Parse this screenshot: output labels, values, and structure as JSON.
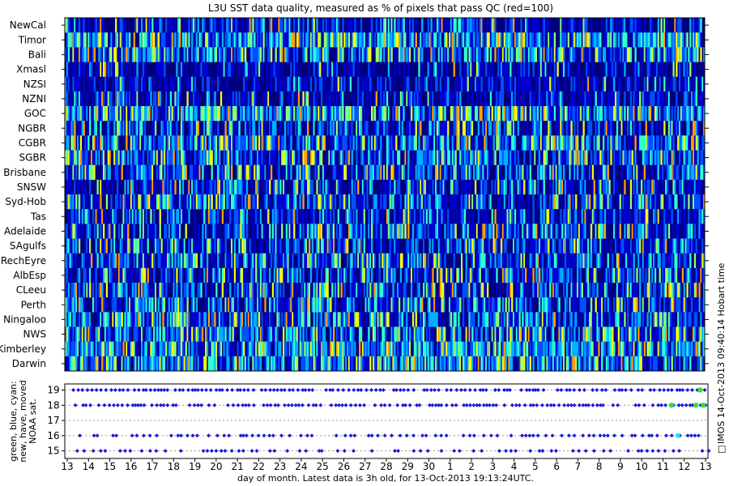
{
  "chart_data": [
    {
      "type": "heatmap",
      "title": "L3U SST data quality, measured as % of pixels that pass QC (red=100)",
      "rows": [
        "NewCal",
        "Timor",
        "Bali",
        "Xmasl",
        "NZSI",
        "NZNI",
        "GOC",
        "NGBR",
        "CGBR",
        "SGBR",
        "Brisbane",
        "SNSW",
        "Syd-Hob",
        "Tas",
        "Adelaide",
        "SAgulfs",
        "RechEyre",
        "AlbEsp",
        "CLeeu",
        "Perth",
        "Ningaloo",
        "NWS",
        "Kimberley",
        "Darwin"
      ],
      "color_scale": {
        "min": 0,
        "max": 100,
        "colors": [
          "#00007f",
          "#0000d0",
          "#0050ff",
          "#00b0ff",
          "#30ffd0",
          "#90ff70",
          "#f0ff10",
          "#ffa000",
          "#ff3000"
        ]
      },
      "row_activity": [
        0.25,
        0.75,
        0.65,
        0.15,
        0.12,
        0.18,
        0.7,
        0.35,
        0.6,
        0.55,
        0.5,
        0.35,
        0.45,
        0.3,
        0.45,
        0.35,
        0.45,
        0.45,
        0.45,
        0.45,
        0.55,
        0.6,
        0.7,
        0.65
      ],
      "columns": 420,
      "seed": 7
    },
    {
      "type": "scatter",
      "ylabel": "green, blue, cyan:\nnew, have, moved\nNOAA sat.",
      "xlabel": "day of month. Latest data is 3h old, for 13-Oct-2013 19:13:24UTC.",
      "ylim": [
        14.5,
        19.4
      ],
      "yticks": [
        15,
        16,
        17,
        18,
        19
      ],
      "series": [
        {
          "y": 19,
          "color": "#1a1adc",
          "density": 0.9
        },
        {
          "y": 18,
          "color": "#1a1adc",
          "density": 0.85
        },
        {
          "y": 16,
          "color": "#1a1adc",
          "density": 0.75
        },
        {
          "y": 15,
          "color": "#1a1adc",
          "density": 0.7
        }
      ],
      "new_points": [
        {
          "y": 18,
          "x": 28.4
        },
        {
          "y": 18,
          "x": 29.55
        },
        {
          "y": 18,
          "x": 29.9
        },
        {
          "y": 19,
          "x": 29.75
        }
      ],
      "moved_points": [
        {
          "y": 16,
          "x": 28.7
        }
      ]
    }
  ],
  "x_ticks": [
    "13",
    "14",
    "15",
    "16",
    "17",
    "18",
    "19",
    "20",
    "21",
    "22",
    "23",
    "24",
    "25",
    "26",
    "27",
    "28",
    "29",
    "30",
    "1",
    "2",
    "3",
    "4",
    "5",
    "6",
    "7",
    "8",
    "9",
    "10",
    "11",
    "12",
    "13"
  ],
  "side_label": "IMOS 14-Oct-2013 09:40:14 Hobart time",
  "side_label_prefix": "□"
}
